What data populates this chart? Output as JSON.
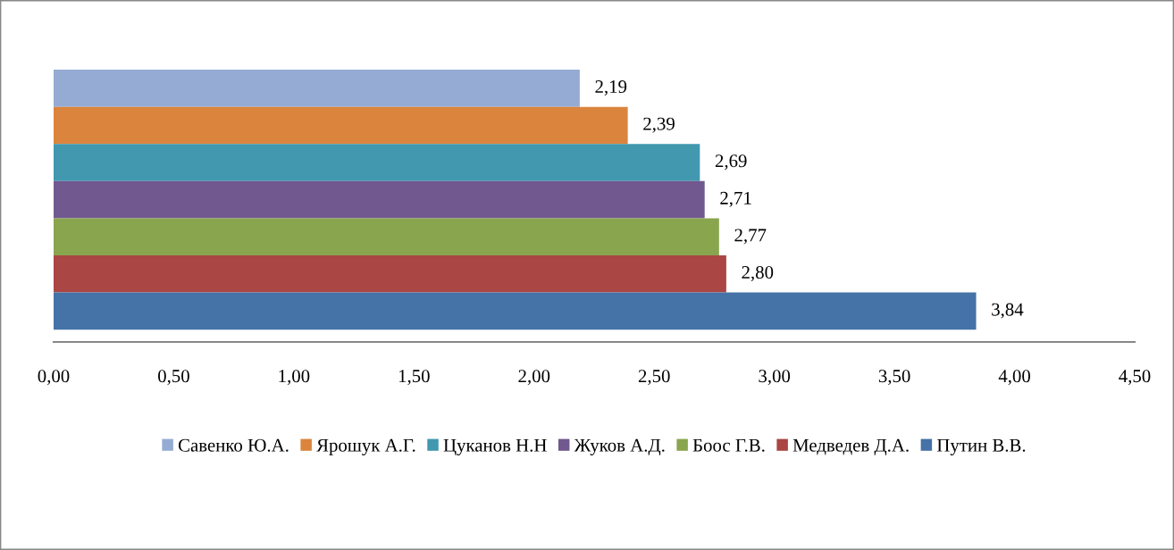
{
  "chart_data": {
    "type": "bar",
    "orientation": "horizontal",
    "categories": [
      null
    ],
    "series": [
      {
        "name": "Савенко Ю.А.",
        "color": "#95abd3",
        "values": [
          2.19
        ],
        "value_labels": [
          "2,19"
        ]
      },
      {
        "name": "Ярошук А.Г.",
        "color": "#db843d",
        "values": [
          2.39
        ],
        "value_labels": [
          "2,39"
        ]
      },
      {
        "name": "Цуканов Н.Н",
        "color": "#4198af",
        "values": [
          2.69
        ],
        "value_labels": [
          "2,69"
        ]
      },
      {
        "name": "Жуков А.Д.",
        "color": "#71588f",
        "values": [
          2.71
        ],
        "value_labels": [
          "2,71"
        ]
      },
      {
        "name": "Боос Г.В.",
        "color": "#89a54e",
        "values": [
          2.77
        ],
        "value_labels": [
          "2,77"
        ]
      },
      {
        "name": "Медведев Д.А.",
        "color": "#aa4643",
        "values": [
          2.8
        ],
        "value_labels": [
          "2,80"
        ]
      },
      {
        "name": "Путин В.В.",
        "color": "#4572a7",
        "values": [
          3.84
        ],
        "value_labels": [
          "3,84"
        ]
      }
    ],
    "xlim": [
      0,
      4.5
    ],
    "xticks": [
      {
        "value": 0,
        "label": "0,00"
      },
      {
        "value": 0.5,
        "label": "0,50"
      },
      {
        "value": 1,
        "label": "1,00"
      },
      {
        "value": 1.5,
        "label": "1,50"
      },
      {
        "value": 2,
        "label": "2,00"
      },
      {
        "value": 2.5,
        "label": "2,50"
      },
      {
        "value": 3,
        "label": "3,00"
      },
      {
        "value": 3.5,
        "label": "3,50"
      },
      {
        "value": 4,
        "label": "4,00"
      },
      {
        "value": 4.5,
        "label": "4,50"
      }
    ],
    "grid": false,
    "legend": "bottom"
  }
}
